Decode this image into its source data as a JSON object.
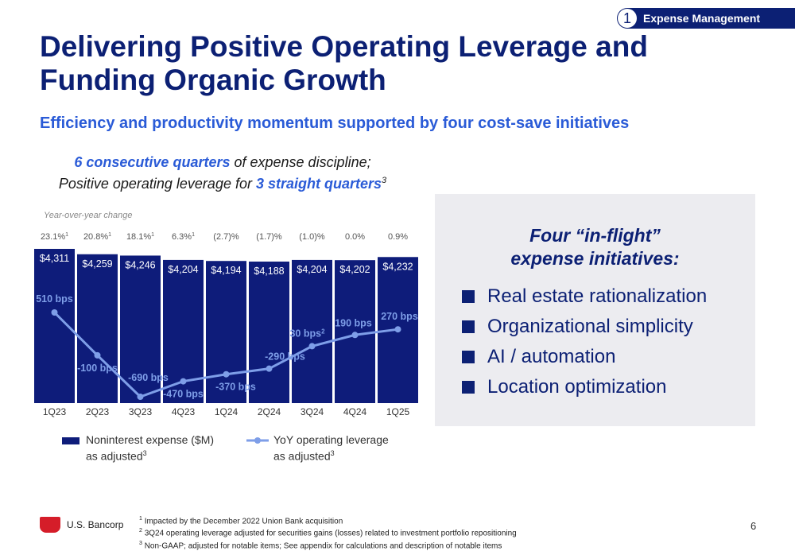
{
  "section_tag": {
    "number": "1",
    "label": "Expense Management"
  },
  "title": "Delivering Positive Operating Leverage and Funding Organic Growth",
  "subtitle": "Efficiency and productivity momentum supported by four cost-save initiatives",
  "callout": {
    "line1_emph": "6 consecutive quarters",
    "line1_rest": " of expense discipline;",
    "line2_pre": "Positive operating leverage for ",
    "line2_emph": "3 straight quarters",
    "line2_sup": "3"
  },
  "colors": {
    "navy": "#0c2074",
    "bar": "#0e1c7a",
    "line": "#7e9ee8",
    "accent_blue": "#2a5bd7",
    "brand_red": "#d51d29"
  },
  "chart_data": {
    "type": "bar",
    "yoy_header": "Year-over-year change",
    "categories": [
      "1Q23",
      "2Q23",
      "3Q23",
      "4Q23",
      "1Q24",
      "2Q24",
      "3Q24",
      "4Q24",
      "1Q25"
    ],
    "yoy_change": [
      "23.1%",
      "20.8%",
      "18.1%",
      "6.3%",
      "(2.7)%",
      "(1.7)%",
      "(1.0)%",
      "0.0%",
      "0.9%"
    ],
    "yoy_sup": [
      "1",
      "1",
      "1",
      "1",
      "",
      "",
      "",
      "",
      ""
    ],
    "series": [
      {
        "name": "Noninterest expense ($M) as adjusted",
        "type": "bar",
        "values": [
          4311,
          4259,
          4246,
          4204,
          4194,
          4188,
          4204,
          4202,
          4232
        ],
        "labels": [
          "$4,311",
          "$4,259",
          "$4,246",
          "$4,204",
          "$4,194",
          "$4,188",
          "$4,204",
          "$4,202",
          "$4,232"
        ]
      },
      {
        "name": "YoY operating leverage as adjusted",
        "type": "line",
        "values": [
          510,
          -100,
          -690,
          -470,
          -370,
          -290,
          30,
          190,
          270
        ],
        "labels": [
          "510 bps",
          "-100 bps",
          "-690 bps",
          "-470 bps",
          "-370 bps",
          "-290 bps",
          "30 bps",
          "190 bps",
          "270 bps"
        ],
        "label_sup": [
          "",
          "",
          "",
          "",
          "",
          "",
          "2",
          "",
          ""
        ]
      }
    ]
  },
  "legend": {
    "bar_line1": "Noninterest expense ($M)",
    "bar_line2": "as adjusted",
    "bar_sup": "3",
    "line_line1": "YoY operating leverage",
    "line_line2": "as adjusted",
    "line_sup": "3"
  },
  "panel": {
    "title_line1": "Four “in-flight”",
    "title_line2": "expense initiatives:",
    "initiatives": [
      "Real estate rationalization",
      "Organizational simplicity",
      "AI / automation",
      "Location optimization"
    ]
  },
  "logo": {
    "text": "U.S. Bancorp"
  },
  "footnotes": [
    {
      "sup": "1",
      "text": "Impacted by the December 2022 Union Bank acquisition"
    },
    {
      "sup": "2",
      "text": "3Q24 operating leverage adjusted for securities gains (losses) related to investment portfolio repositioning"
    },
    {
      "sup": "3",
      "text": "Non-GAAP; adjusted for notable items; See appendix for calculations and description of notable items"
    }
  ],
  "page_number": "6"
}
